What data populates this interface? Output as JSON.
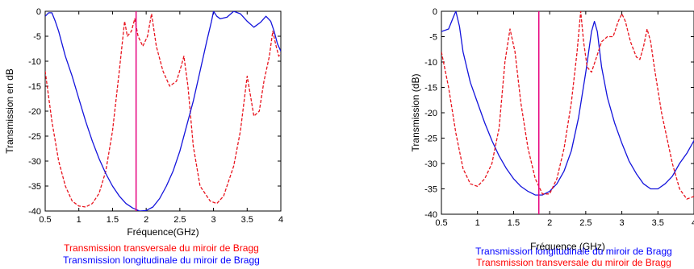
{
  "chart_data": [
    {
      "type": "line",
      "xlabel": "Fréquence(GHz)",
      "ylabel": "Transmission en dB",
      "xlim": [
        0.5,
        4
      ],
      "ylim": [
        -40,
        0
      ],
      "xticks": [
        "0.5",
        "1",
        "1.5",
        "2",
        "2.5",
        "3",
        "3.5",
        "4"
      ],
      "yticks": [
        "0",
        "-5",
        "-10",
        "-15",
        "-20",
        "-25",
        "-30",
        "-35",
        "-40"
      ],
      "grid": false,
      "marker_x": 1.85,
      "captions": [
        {
          "text": "Transmission transversale du miroir de Bragg",
          "color": "#ff0000"
        },
        {
          "text": "Transmission longitudinale du miroir de Bragg",
          "color": "#0000ff"
        }
      ],
      "series": [
        {
          "style": "dashed",
          "color": "#e8141e",
          "points": [
            [
              0.5,
              -12
            ],
            [
              0.6,
              -22
            ],
            [
              0.7,
              -30
            ],
            [
              0.8,
              -35
            ],
            [
              0.9,
              -38
            ],
            [
              1.0,
              -39
            ],
            [
              1.1,
              -39.2
            ],
            [
              1.2,
              -38.5
            ],
            [
              1.3,
              -36.5
            ],
            [
              1.4,
              -32
            ],
            [
              1.5,
              -24
            ],
            [
              1.6,
              -12
            ],
            [
              1.68,
              -2
            ],
            [
              1.72,
              -5
            ],
            [
              1.78,
              -4
            ],
            [
              1.83,
              -1.5
            ],
            [
              1.88,
              -5
            ],
            [
              1.95,
              -7
            ],
            [
              2.02,
              -5
            ],
            [
              2.08,
              -0.5
            ],
            [
              2.15,
              -7
            ],
            [
              2.25,
              -12
            ],
            [
              2.35,
              -15
            ],
            [
              2.45,
              -14
            ],
            [
              2.52,
              -11
            ],
            [
              2.56,
              -9
            ],
            [
              2.62,
              -15
            ],
            [
              2.7,
              -27
            ],
            [
              2.8,
              -35
            ],
            [
              2.95,
              -38
            ],
            [
              3.05,
              -38.5
            ],
            [
              3.15,
              -37
            ],
            [
              3.3,
              -31
            ],
            [
              3.4,
              -24
            ],
            [
              3.5,
              -13
            ],
            [
              3.55,
              -17
            ],
            [
              3.6,
              -21
            ],
            [
              3.68,
              -20
            ],
            [
              3.75,
              -14
            ],
            [
              3.83,
              -9
            ],
            [
              3.88,
              -4
            ],
            [
              3.93,
              -7
            ],
            [
              3.97,
              -9
            ],
            [
              4.0,
              -8.5
            ]
          ]
        },
        {
          "style": "solid",
          "color": "#1414dc",
          "points": [
            [
              0.5,
              -1
            ],
            [
              0.55,
              -0.3
            ],
            [
              0.6,
              -0.3
            ],
            [
              0.65,
              -2
            ],
            [
              0.7,
              -4
            ],
            [
              0.8,
              -9
            ],
            [
              0.9,
              -13
            ],
            [
              1.0,
              -17.5
            ],
            [
              1.1,
              -22
            ],
            [
              1.2,
              -26
            ],
            [
              1.3,
              -29.5
            ],
            [
              1.4,
              -32.5
            ],
            [
              1.5,
              -35
            ],
            [
              1.6,
              -37
            ],
            [
              1.7,
              -38.5
            ],
            [
              1.8,
              -39.4
            ],
            [
              1.9,
              -40
            ],
            [
              2.0,
              -39.9
            ],
            [
              2.1,
              -39.2
            ],
            [
              2.2,
              -37.5
            ],
            [
              2.3,
              -35
            ],
            [
              2.4,
              -32
            ],
            [
              2.5,
              -28
            ],
            [
              2.6,
              -23
            ],
            [
              2.7,
              -18
            ],
            [
              2.8,
              -12
            ],
            [
              2.9,
              -6
            ],
            [
              2.97,
              -2
            ],
            [
              3.0,
              0
            ],
            [
              3.05,
              -1
            ],
            [
              3.1,
              -1.5
            ],
            [
              3.2,
              -1.2
            ],
            [
              3.3,
              0
            ],
            [
              3.4,
              -0.5
            ],
            [
              3.5,
              -2
            ],
            [
              3.6,
              -3.2
            ],
            [
              3.7,
              -2.2
            ],
            [
              3.78,
              -1
            ],
            [
              3.85,
              -2
            ],
            [
              3.9,
              -4
            ],
            [
              3.95,
              -6.5
            ],
            [
              4.0,
              -8
            ]
          ]
        }
      ]
    },
    {
      "type": "line",
      "xlabel": "Fréquence (GHz)",
      "ylabel": "Transmission (dB)",
      "xlim": [
        0.5,
        4
      ],
      "ylim": [
        -40,
        0
      ],
      "xticks": [
        "0.5",
        "1",
        "1.5",
        "2",
        "2.5",
        "3",
        "3.5",
        "4"
      ],
      "yticks": [
        "0",
        "-5",
        "-10",
        "-15",
        "-20",
        "-25",
        "-30",
        "-35",
        "-40"
      ],
      "grid": false,
      "marker_x": 1.85,
      "captions": [
        {
          "text": "Transmission longitudinale du miroir de Bragg",
          "color": "#0000ff"
        },
        {
          "text": "Transmission transversale du miroir de Bragg",
          "color": "#ff0000"
        }
      ],
      "series": [
        {
          "style": "solid",
          "color": "#1414dc",
          "points": [
            [
              0.5,
              -4
            ],
            [
              0.6,
              -3.5
            ],
            [
              0.67,
              -1
            ],
            [
              0.7,
              0
            ],
            [
              0.75,
              -3
            ],
            [
              0.8,
              -8
            ],
            [
              0.9,
              -14
            ],
            [
              1.0,
              -18
            ],
            [
              1.1,
              -22
            ],
            [
              1.2,
              -25.5
            ],
            [
              1.3,
              -28.5
            ],
            [
              1.4,
              -31
            ],
            [
              1.5,
              -33
            ],
            [
              1.6,
              -34.5
            ],
            [
              1.7,
              -35.5
            ],
            [
              1.8,
              -36.2
            ],
            [
              1.9,
              -36.2
            ],
            [
              2.0,
              -35.5
            ],
            [
              2.1,
              -34
            ],
            [
              2.2,
              -31.5
            ],
            [
              2.3,
              -27.5
            ],
            [
              2.4,
              -21
            ],
            [
              2.5,
              -12
            ],
            [
              2.58,
              -4
            ],
            [
              2.62,
              -2
            ],
            [
              2.66,
              -4
            ],
            [
              2.72,
              -11
            ],
            [
              2.8,
              -17
            ],
            [
              2.9,
              -22
            ],
            [
              3.0,
              -26
            ],
            [
              3.1,
              -29.5
            ],
            [
              3.2,
              -32
            ],
            [
              3.3,
              -34
            ],
            [
              3.4,
              -35
            ],
            [
              3.5,
              -35
            ],
            [
              3.6,
              -34
            ],
            [
              3.7,
              -32.5
            ],
            [
              3.8,
              -30
            ],
            [
              3.9,
              -28
            ],
            [
              4.0,
              -25.5
            ]
          ]
        },
        {
          "style": "dashed",
          "color": "#e8141e",
          "points": [
            [
              0.5,
              -8
            ],
            [
              0.6,
              -15
            ],
            [
              0.7,
              -24
            ],
            [
              0.8,
              -31
            ],
            [
              0.9,
              -34
            ],
            [
              1.0,
              -34.5
            ],
            [
              1.1,
              -33
            ],
            [
              1.2,
              -30
            ],
            [
              1.3,
              -23
            ],
            [
              1.38,
              -10
            ],
            [
              1.45,
              -3.5
            ],
            [
              1.52,
              -8
            ],
            [
              1.6,
              -18
            ],
            [
              1.7,
              -27
            ],
            [
              1.8,
              -33
            ],
            [
              1.9,
              -36
            ],
            [
              2.0,
              -36
            ],
            [
              2.1,
              -33
            ],
            [
              2.2,
              -27
            ],
            [
              2.3,
              -18
            ],
            [
              2.38,
              -8
            ],
            [
              2.43,
              0
            ],
            [
              2.47,
              -6
            ],
            [
              2.52,
              -11
            ],
            [
              2.58,
              -12
            ],
            [
              2.65,
              -9
            ],
            [
              2.72,
              -6
            ],
            [
              2.8,
              -5
            ],
            [
              2.88,
              -5
            ],
            [
              2.95,
              -2
            ],
            [
              3.0,
              -0.5
            ],
            [
              3.05,
              -2
            ],
            [
              3.12,
              -6
            ],
            [
              3.2,
              -9
            ],
            [
              3.25,
              -9.5
            ],
            [
              3.3,
              -7
            ],
            [
              3.35,
              -3.5
            ],
            [
              3.4,
              -6
            ],
            [
              3.45,
              -11
            ],
            [
              3.55,
              -20
            ],
            [
              3.7,
              -30
            ],
            [
              3.8,
              -35
            ],
            [
              3.9,
              -37
            ],
            [
              4.0,
              -36.5
            ]
          ]
        }
      ]
    }
  ]
}
